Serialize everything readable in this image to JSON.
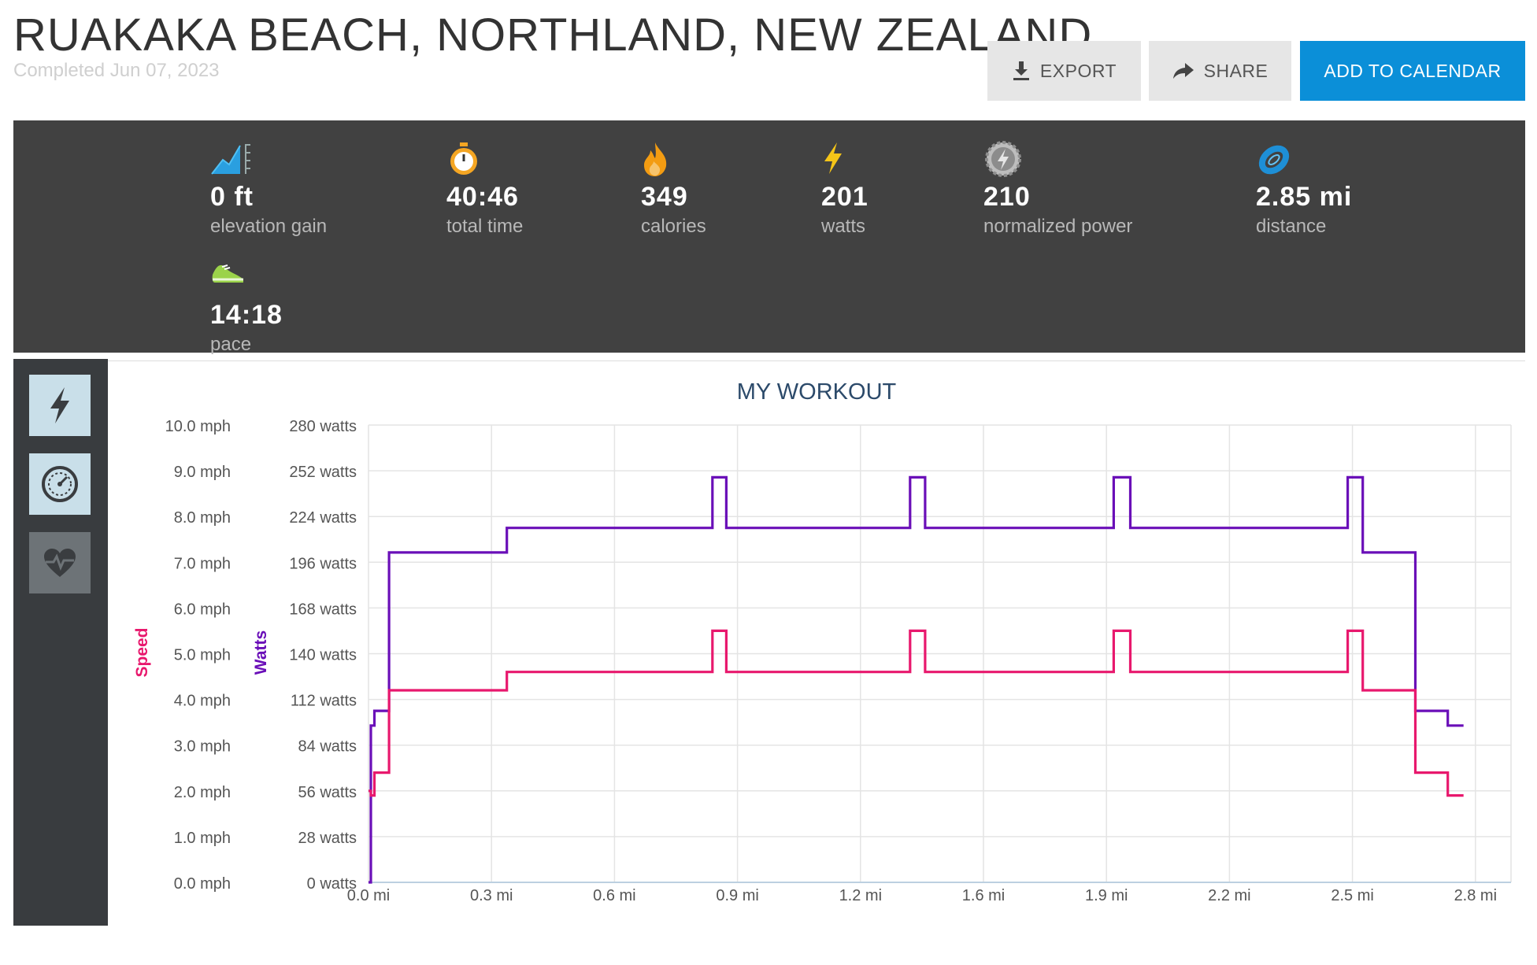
{
  "header": {
    "title": "RUAKAKA BEACH, NORTHLAND, NEW ZEALAND",
    "subtitle": "Completed Jun 07, 2023"
  },
  "actions": {
    "export_label": "EXPORT",
    "share_label": "SHARE",
    "calendar_label": "ADD TO CALENDAR"
  },
  "stats": [
    {
      "icon": "elevation-icon",
      "value": "0 ft",
      "label": "elevation gain"
    },
    {
      "icon": "stopwatch-icon",
      "value": "40:46",
      "label": "total time"
    },
    {
      "icon": "flame-icon",
      "value": "349",
      "label": "calories"
    },
    {
      "icon": "lightning-icon",
      "value": "201",
      "label": "watts"
    },
    {
      "icon": "power-gear-icon",
      "value": "210",
      "label": "normalized power"
    },
    {
      "icon": "distance-icon",
      "value": "2.85 mi",
      "label": "distance"
    },
    {
      "icon": "shoe-icon",
      "value": "14:18",
      "label": "pace"
    }
  ],
  "sidebar": {
    "items": [
      {
        "icon": "lightning-icon",
        "state": "active"
      },
      {
        "icon": "speedometer-icon",
        "state": "active"
      },
      {
        "icon": "heart-rate-icon",
        "state": "inactive"
      }
    ]
  },
  "colors": {
    "speed": "#e8186d",
    "watts": "#6a0fb8",
    "accent": "#0b8fd8",
    "panel": "#414141"
  },
  "chart_data": {
    "type": "line",
    "title": "MY WORKOUT",
    "xlabel": "",
    "ylabel_left": "Speed",
    "ylabel_right": "Watts",
    "xlim": [
      0,
      2.85
    ],
    "x_ticks": [
      "0.0 mi",
      "0.3 mi",
      "0.6 mi",
      "0.9 mi",
      "1.2 mi",
      "1.6 mi",
      "1.9 mi",
      "2.2 mi",
      "2.5 mi",
      "2.8 mi"
    ],
    "speed_ticks": [
      "0.0 mph",
      "1.0 mph",
      "2.0 mph",
      "3.0 mph",
      "4.0 mph",
      "5.0 mph",
      "6.0 mph",
      "7.0 mph",
      "8.0 mph",
      "9.0 mph",
      "10.0 mph"
    ],
    "watts_ticks": [
      "0 watts",
      "28 watts",
      "56 watts",
      "84 watts",
      "112 watts",
      "140 watts",
      "168 watts",
      "196 watts",
      "224 watts",
      "252 watts",
      "280 watts"
    ],
    "speed_range": [
      0,
      10
    ],
    "watts_range": [
      0,
      280
    ],
    "grid": true,
    "series": [
      {
        "name": "Watts",
        "axis": "watts",
        "points": [
          [
            0,
            0
          ],
          [
            0.006,
            0
          ],
          [
            0.006,
            96
          ],
          [
            0.015,
            96
          ],
          [
            0.015,
            105
          ],
          [
            0.052,
            105
          ],
          [
            0.052,
            202
          ],
          [
            0.35,
            202
          ],
          [
            0.35,
            217
          ],
          [
            0.87,
            217
          ],
          [
            0.87,
            248
          ],
          [
            0.905,
            248
          ],
          [
            0.905,
            217
          ],
          [
            1.37,
            217
          ],
          [
            1.37,
            248
          ],
          [
            1.408,
            248
          ],
          [
            1.408,
            217
          ],
          [
            1.885,
            217
          ],
          [
            1.885,
            248
          ],
          [
            1.927,
            248
          ],
          [
            1.927,
            217
          ],
          [
            2.477,
            217
          ],
          [
            2.477,
            248
          ],
          [
            2.515,
            248
          ],
          [
            2.515,
            202
          ],
          [
            2.648,
            202
          ],
          [
            2.648,
            105
          ],
          [
            2.73,
            105
          ],
          [
            2.73,
            96
          ],
          [
            2.77,
            96
          ]
        ]
      },
      {
        "name": "Speed",
        "axis": "speed",
        "points": [
          [
            0,
            2.0
          ],
          [
            0.006,
            2.0
          ],
          [
            0.006,
            1.9
          ],
          [
            0.015,
            1.9
          ],
          [
            0.015,
            2.4
          ],
          [
            0.052,
            2.4
          ],
          [
            0.052,
            4.2
          ],
          [
            0.35,
            4.2
          ],
          [
            0.35,
            4.6
          ],
          [
            0.87,
            4.6
          ],
          [
            0.87,
            5.5
          ],
          [
            0.905,
            5.5
          ],
          [
            0.905,
            4.6
          ],
          [
            1.37,
            4.6
          ],
          [
            1.37,
            5.5
          ],
          [
            1.408,
            5.5
          ],
          [
            1.408,
            4.6
          ],
          [
            1.885,
            4.6
          ],
          [
            1.885,
            5.5
          ],
          [
            1.927,
            5.5
          ],
          [
            1.927,
            4.6
          ],
          [
            2.477,
            4.6
          ],
          [
            2.477,
            5.5
          ],
          [
            2.515,
            5.5
          ],
          [
            2.515,
            4.2
          ],
          [
            2.648,
            4.2
          ],
          [
            2.648,
            2.4
          ],
          [
            2.73,
            2.4
          ],
          [
            2.73,
            1.9
          ],
          [
            2.77,
            1.9
          ]
        ]
      }
    ]
  }
}
